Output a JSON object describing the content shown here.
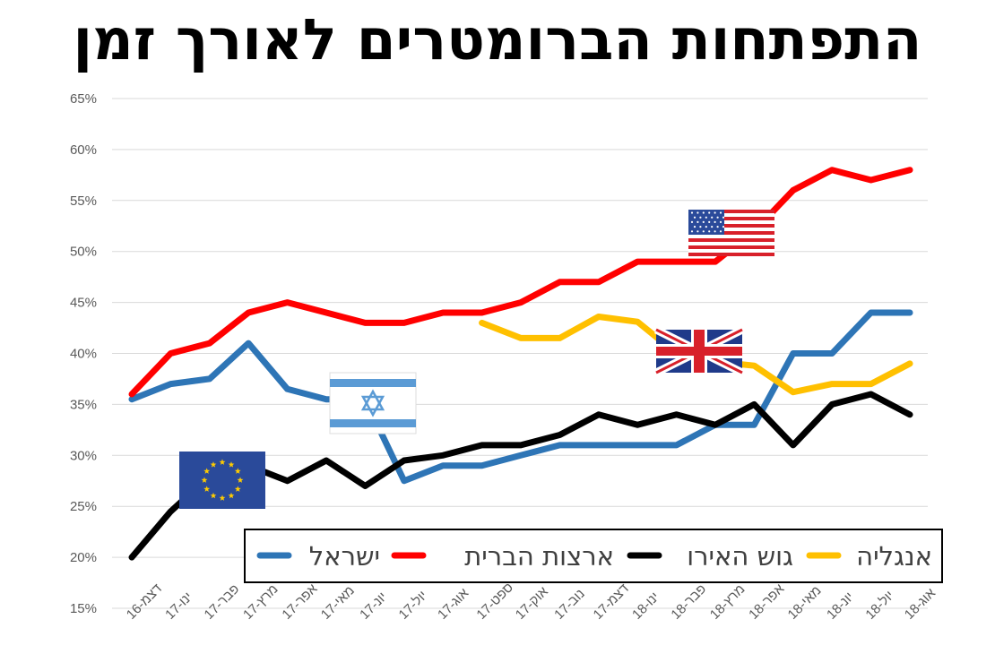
{
  "chart_data": {
    "type": "line",
    "title": "התפתחות הברומטרים לאורך זמן",
    "ylim": [
      0.15,
      0.65
    ],
    "yticks": [
      "15%",
      "20%",
      "25%",
      "30%",
      "35%",
      "40%",
      "45%",
      "50%",
      "55%",
      "60%",
      "65%"
    ],
    "grid": true,
    "legend_position": "bottom-right",
    "categories": [
      "דצמ-16",
      "ינו-17",
      "פבר-17",
      "מרץ-17",
      "אפר-17",
      "מאי-17",
      "יונ-17",
      "יול-17",
      "אוג-17",
      "ספט-17",
      "אוק-17",
      "נוב-17",
      "דצמ-17",
      "ינו-18",
      "פבר-18",
      "מרץ-18",
      "אפר-18",
      "מאי-18",
      "יונ-18",
      "יול-18",
      "אוג-18"
    ],
    "series": [
      {
        "name": "ישראל",
        "color": "#2E75B6",
        "flag": "israel-flag",
        "values": [
          0.355,
          0.37,
          0.375,
          0.41,
          0.365,
          0.355,
          0.355,
          0.275,
          0.29,
          0.29,
          0.3,
          0.31,
          0.31,
          0.31,
          0.31,
          0.33,
          0.33,
          0.4,
          0.4,
          0.44,
          0.44
        ]
      },
      {
        "name": "ארצות הברית",
        "color": "#FF0000",
        "flag": "usa-flag",
        "values": [
          0.36,
          0.4,
          0.41,
          0.44,
          0.45,
          0.44,
          0.43,
          0.43,
          0.44,
          0.44,
          0.45,
          0.47,
          0.47,
          0.49,
          0.49,
          0.49,
          0.52,
          0.56,
          0.58,
          0.57,
          0.58
        ]
      },
      {
        "name": "גוש האירו",
        "color": "#000000",
        "flag": "eu-flag",
        "values": [
          0.2,
          0.245,
          0.28,
          0.29,
          0.275,
          0.295,
          0.27,
          0.295,
          0.3,
          0.31,
          0.31,
          0.32,
          0.34,
          0.33,
          0.34,
          0.33,
          0.35,
          0.31,
          0.35,
          0.36,
          0.34
        ]
      },
      {
        "name": "אנגליה",
        "color": "#FFC000",
        "flag": "uk-flag",
        "values": [
          null,
          null,
          null,
          null,
          null,
          null,
          null,
          null,
          null,
          0.43,
          0.415,
          0.415,
          0.436,
          0.431,
          0.4,
          0.392,
          0.388,
          0.362,
          0.37,
          0.37,
          0.39
        ]
      }
    ]
  }
}
